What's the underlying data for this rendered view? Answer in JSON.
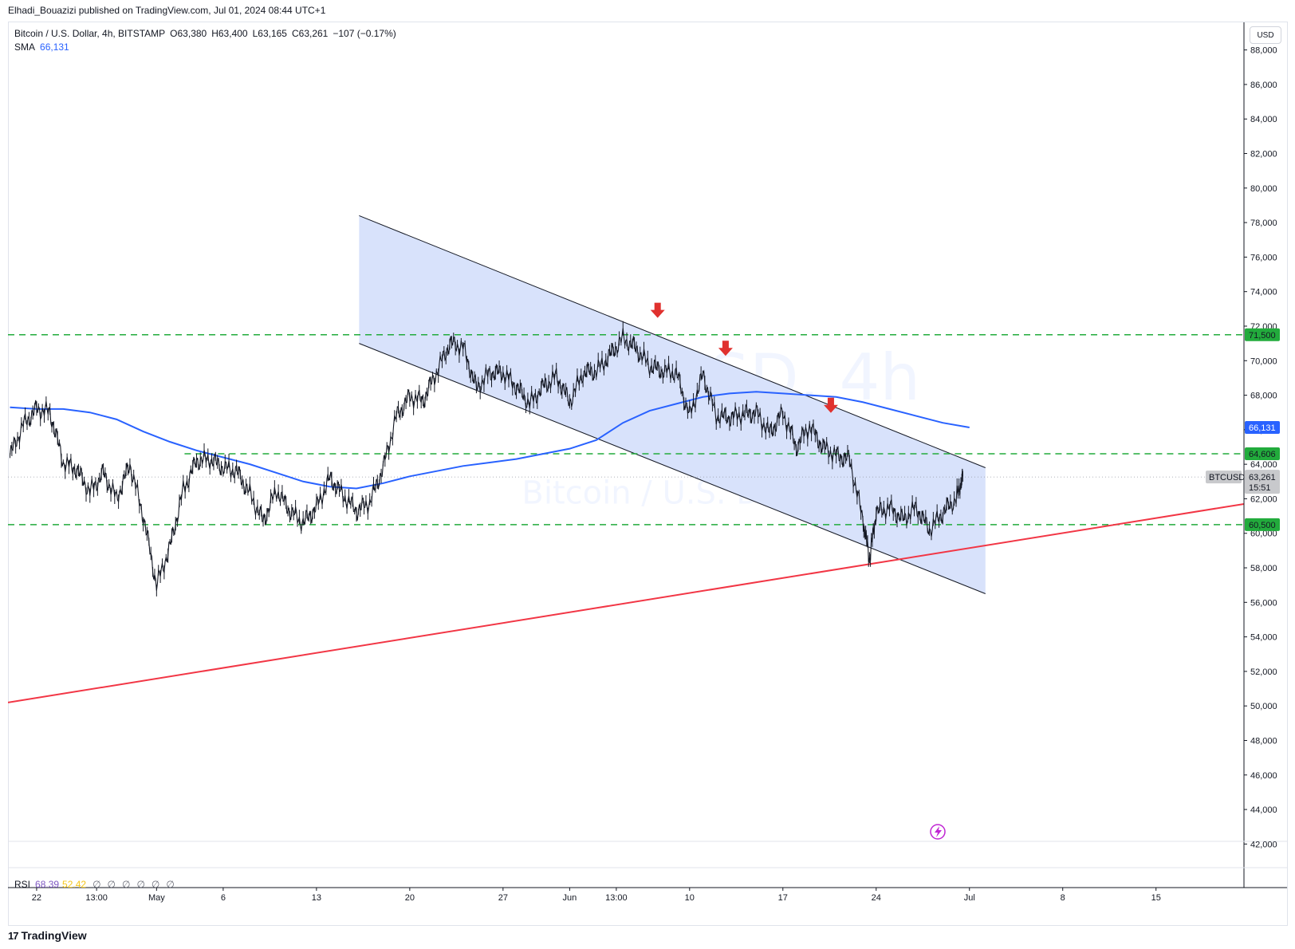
{
  "header": {
    "attribution": "Elhadi_Bouazizi published on TradingView.com, Jul 01, 2024 08:44 UTC+1"
  },
  "legend": {
    "symbol": "Bitcoin / U.S. Dollar, 4h, BITSTAMP",
    "open": "O63,380",
    "high": "H63,400",
    "low": "L63,165",
    "close": "C63,261",
    "change": "−107 (−0.17%)",
    "sma_label": "SMA",
    "sma_value": "66,131"
  },
  "currency_button": "USD",
  "watermark": {
    "line1": "BTCUSD, 4h",
    "line2": "Bitcoin / U.S. Dollar"
  },
  "rsi": {
    "label": "RSI",
    "value1": "68.39",
    "value2": "52.42",
    "slashes": [
      "∅",
      "∅",
      "∅",
      "∅",
      "∅",
      "∅"
    ]
  },
  "footer_logo": {
    "mark": "17",
    "text": "TradingView"
  },
  "colors": {
    "channel_fill": "#d6e0fb",
    "channel_line": "#131722",
    "sma": "#2962ff",
    "support_line": "#f23645",
    "dashed_level": "#22ab3c",
    "arrow": "#e0312e",
    "price_badge": "#c8c9cc"
  },
  "chart_data": {
    "type": "line",
    "title": "Bitcoin / U.S. Dollar, 4h, BITSTAMP",
    "y_axis": {
      "ticks": [
        "88,000",
        "86,000",
        "84,000",
        "82,000",
        "80,000",
        "78,000",
        "76,000",
        "74,000",
        "72,000",
        "70,000",
        "68,000",
        "66,000",
        "64,000",
        "62,000",
        "60,000",
        "58,000",
        "56,000",
        "54,000",
        "52,000",
        "50,000",
        "48,000",
        "46,000",
        "44,000",
        "42,000"
      ],
      "ylim": [
        40400,
        89600
      ]
    },
    "x_axis": {
      "ticks": [
        "22",
        "13:00",
        "May",
        "6",
        "13",
        "20",
        "27",
        "Jun",
        "13:00",
        "10",
        "17",
        "24",
        "Jul",
        "8",
        "15"
      ],
      "tick_days": [
        0,
        4.5,
        9,
        14,
        21,
        28,
        35,
        40,
        43.5,
        49,
        56,
        63,
        70,
        77,
        84
      ],
      "xlim": [
        -2.15,
        90.6
      ]
    },
    "price_series": {
      "name": "BTCUSD",
      "days": [
        -2,
        -1,
        0,
        1,
        2,
        3,
        4,
        5,
        6,
        7,
        8,
        9,
        10,
        11,
        12,
        13,
        14,
        15,
        16,
        17,
        18,
        19,
        20,
        21,
        22,
        23,
        24,
        25,
        26,
        27,
        28,
        29,
        30,
        31,
        32,
        33,
        34,
        35,
        36,
        37,
        38,
        39,
        40,
        41,
        42,
        43,
        44,
        45,
        46,
        47,
        48,
        49,
        50,
        51,
        52,
        53,
        54,
        55,
        56,
        57,
        58,
        59,
        60,
        61,
        62,
        62.5,
        63,
        64,
        65,
        66,
        67,
        68,
        69,
        69.5
      ],
      "values": [
        64500,
        66300,
        67200,
        67000,
        64100,
        63700,
        62400,
        63500,
        62000,
        64000,
        61000,
        57000,
        59200,
        62500,
        64200,
        64300,
        63800,
        63600,
        62300,
        60700,
        62500,
        61300,
        60600,
        61500,
        63200,
        62200,
        61300,
        61800,
        63800,
        66800,
        67900,
        67700,
        69300,
        71000,
        70800,
        68400,
        69300,
        69300,
        68500,
        67500,
        68500,
        69100,
        67600,
        69300,
        69400,
        70300,
        71300,
        70700,
        69700,
        69400,
        69300,
        66800,
        69200,
        66800,
        66700,
        66900,
        67000,
        65800,
        67000,
        65000,
        66200,
        65000,
        64500,
        64300,
        60800,
        58500,
        61200,
        61500,
        60800,
        61500,
        60200,
        61200,
        62000,
        63300
      ]
    },
    "sma_series": {
      "name": "SMA",
      "days": [
        -2,
        0,
        2,
        4,
        6,
        8,
        10,
        12,
        14,
        16,
        18,
        20,
        22,
        24,
        26,
        28,
        30,
        32,
        34,
        36,
        38,
        40,
        42,
        44,
        46,
        48,
        50,
        52,
        54,
        56,
        58,
        60,
        62,
        64,
        66,
        68,
        70
      ],
      "values": [
        67300,
        67200,
        67200,
        67000,
        66600,
        65900,
        65300,
        64800,
        64400,
        64000,
        63500,
        63000,
        62700,
        62600,
        62900,
        63300,
        63600,
        63900,
        64100,
        64300,
        64600,
        64900,
        65400,
        66400,
        67100,
        67500,
        67900,
        68100,
        68200,
        68100,
        68000,
        67900,
        67600,
        67200,
        66800,
        66400,
        66131
      ]
    },
    "channel": {
      "upper": {
        "from": {
          "day": 24.2,
          "value": 78400
        },
        "to": {
          "day": 71.2,
          "value": 63800
        }
      },
      "lower": {
        "from": {
          "day": 24.2,
          "value": 71000
        },
        "to": {
          "day": 71.2,
          "value": 56500
        }
      }
    },
    "trendline": {
      "from": {
        "day": -2.15,
        "value": 50200
      },
      "to": {
        "day": 90.6,
        "value": 61700
      }
    },
    "levels": [
      {
        "value": 71500,
        "label": "71,500",
        "from_day": -2.15
      },
      {
        "value": 64606,
        "label": "64,606",
        "from_day": 11.1
      },
      {
        "value": 60500,
        "label": "60,500",
        "from_day": -2.15
      }
    ],
    "arrows": [
      {
        "day": 46.6,
        "value": 72800
      },
      {
        "day": 51.7,
        "value": 70600
      },
      {
        "day": 59.6,
        "value": 67300
      }
    ],
    "last_price": {
      "label": "63,261",
      "value": 63261,
      "symbol": "BTCUSD",
      "countdown": "15:51"
    },
    "sma_badge": {
      "label": "66,131",
      "value": 66131
    }
  }
}
